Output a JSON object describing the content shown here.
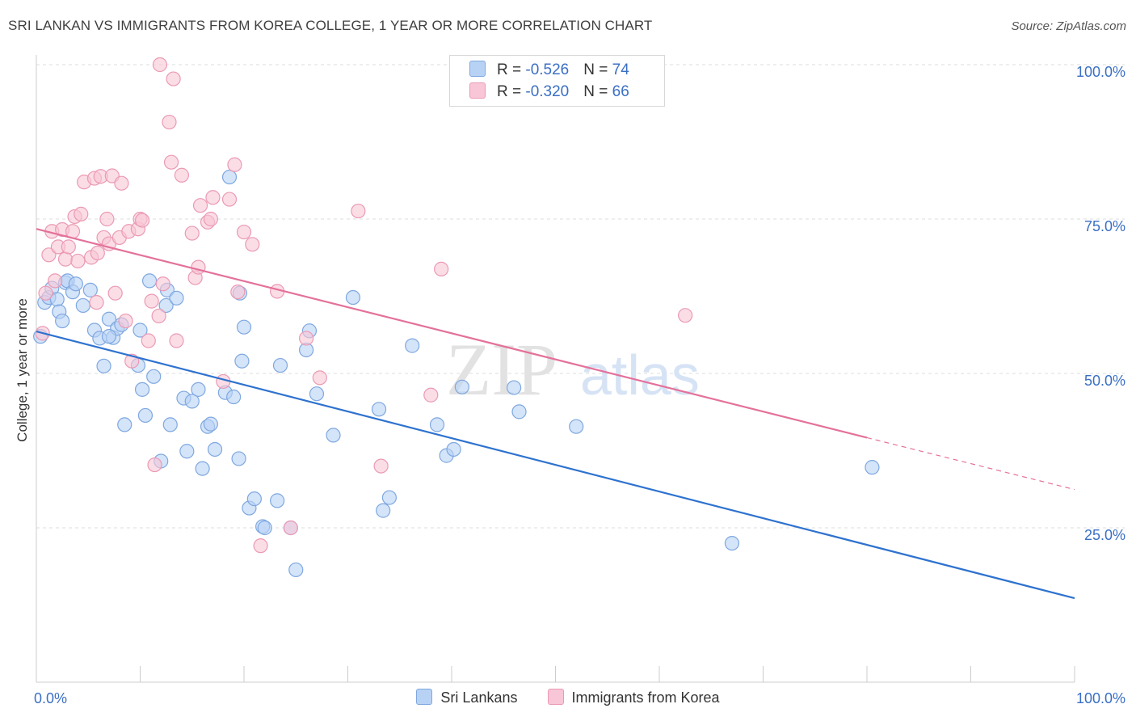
{
  "title": "SRI LANKAN VS IMMIGRANTS FROM KOREA COLLEGE, 1 YEAR OR MORE CORRELATION CHART",
  "source": "Source: ZipAtlas.com",
  "watermark": {
    "part1": "ZIP",
    "part2": "atlas"
  },
  "colors": {
    "blue_fill": "#b8d2f5",
    "blue_stroke": "#7fa8e0",
    "blue_line": "#2e72cf",
    "pink_fill": "#f8c6d6",
    "pink_stroke": "#eb9ab4",
    "pink_line": "#e4719a",
    "axis_text": "#3a6fc4",
    "grid": "#dddddd"
  },
  "legend_top": [
    {
      "r_label": "R = ",
      "r_value": "-0.526",
      "n_label": "N = ",
      "n_value": "74",
      "color": "#b8d2f5"
    },
    {
      "r_label": "R = ",
      "r_value": "-0.320",
      "n_label": "N = ",
      "n_value": "66",
      "color": "#f8c6d6"
    }
  ],
  "legend_bottom": [
    {
      "label": "Sri Lankans",
      "color": "#b8d2f5"
    },
    {
      "label": "Immigrants from Korea",
      "color": "#f8c6d6"
    }
  ],
  "chart_data": {
    "type": "scatter",
    "title": "SRI LANKAN VS IMMIGRANTS FROM KOREA COLLEGE, 1 YEAR OR MORE CORRELATION CHART",
    "xlabel": "",
    "ylabel": "College, 1 year or more",
    "xlim": [
      0,
      100
    ],
    "ylim": [
      0,
      100
    ],
    "x_tick_labels": [
      {
        "value": 0,
        "label": "0.0%"
      },
      {
        "value": 100,
        "label": "100.0%"
      }
    ],
    "y_tick_labels": [
      {
        "value": 25,
        "label": "25.0%"
      },
      {
        "value": 50,
        "label": "50.0%"
      },
      {
        "value": 75,
        "label": "75.0%"
      },
      {
        "value": 100,
        "label": "100.0%"
      }
    ],
    "grid": "horizontal dashed",
    "legend": "top-center",
    "series": [
      {
        "name": "Sri Lankans",
        "r": -0.526,
        "n": 74,
        "trend": {
          "x0": 0,
          "y0": 56.8,
          "x1": 100,
          "y1": 13.6
        },
        "points": [
          [
            0.8,
            61.5
          ],
          [
            1.2,
            62.3
          ],
          [
            1.5,
            63.8
          ],
          [
            2.0,
            62.0
          ],
          [
            2.2,
            60.0
          ],
          [
            2.5,
            58.5
          ],
          [
            2.8,
            64.7
          ],
          [
            3.0,
            65.0
          ],
          [
            3.5,
            63.2
          ],
          [
            4.5,
            61.0
          ],
          [
            5.2,
            63.5
          ],
          [
            5.6,
            57.0
          ],
          [
            6.1,
            55.7
          ],
          [
            6.5,
            51.2
          ],
          [
            7.0,
            58.8
          ],
          [
            7.4,
            55.8
          ],
          [
            7.8,
            57.3
          ],
          [
            8.2,
            57.9
          ],
          [
            8.5,
            41.7
          ],
          [
            9.8,
            51.3
          ],
          [
            10.0,
            57.0
          ],
          [
            10.2,
            47.4
          ],
          [
            10.5,
            43.2
          ],
          [
            10.9,
            65.0
          ],
          [
            11.3,
            49.5
          ],
          [
            12.0,
            35.8
          ],
          [
            12.5,
            61.0
          ],
          [
            12.6,
            63.5
          ],
          [
            12.9,
            41.7
          ],
          [
            13.5,
            62.2
          ],
          [
            14.2,
            46.0
          ],
          [
            14.5,
            37.4
          ],
          [
            15.0,
            45.5
          ],
          [
            15.6,
            47.4
          ],
          [
            16.0,
            34.6
          ],
          [
            16.5,
            41.4
          ],
          [
            16.8,
            41.8
          ],
          [
            17.2,
            37.7
          ],
          [
            18.2,
            46.9
          ],
          [
            18.6,
            81.8
          ],
          [
            19.0,
            46.2
          ],
          [
            19.5,
            36.2
          ],
          [
            19.6,
            63.0
          ],
          [
            19.8,
            52.0
          ],
          [
            20.0,
            57.5
          ],
          [
            20.5,
            28.2
          ],
          [
            21.0,
            29.7
          ],
          [
            21.8,
            25.2
          ],
          [
            22.0,
            25.0
          ],
          [
            23.2,
            29.4
          ],
          [
            23.5,
            51.3
          ],
          [
            24.5,
            25.0
          ],
          [
            25.0,
            18.2
          ],
          [
            26.0,
            53.8
          ],
          [
            26.3,
            56.9
          ],
          [
            27.0,
            46.7
          ],
          [
            28.6,
            40.0
          ],
          [
            30.5,
            62.3
          ],
          [
            33.0,
            44.2
          ],
          [
            33.4,
            27.8
          ],
          [
            34.0,
            29.9
          ],
          [
            36.2,
            54.5
          ],
          [
            38.6,
            41.7
          ],
          [
            39.5,
            36.7
          ],
          [
            40.2,
            37.7
          ],
          [
            41.0,
            47.8
          ],
          [
            46.0,
            47.7
          ],
          [
            46.5,
            43.8
          ],
          [
            52.0,
            41.4
          ],
          [
            67.0,
            22.5
          ],
          [
            80.5,
            34.8
          ],
          [
            0.4,
            56.0
          ],
          [
            7.0,
            56.0
          ],
          [
            3.8,
            64.5
          ]
        ]
      },
      {
        "name": "Immigrants from Korea",
        "r": -0.32,
        "n": 66,
        "trend": {
          "x0": 0,
          "y0": 73.4,
          "x1": 80,
          "y1": 39.6,
          "dash_to_x": 100,
          "dash_to_y": 31.2
        },
        "points": [
          [
            0.6,
            56.5
          ],
          [
            0.9,
            63.0
          ],
          [
            1.2,
            69.2
          ],
          [
            1.5,
            73.0
          ],
          [
            1.8,
            65.0
          ],
          [
            2.1,
            70.5
          ],
          [
            2.5,
            73.3
          ],
          [
            2.8,
            68.5
          ],
          [
            3.1,
            70.5
          ],
          [
            3.5,
            73.0
          ],
          [
            3.7,
            75.4
          ],
          [
            4.0,
            68.2
          ],
          [
            4.3,
            75.8
          ],
          [
            4.6,
            81.0
          ],
          [
            5.3,
            68.8
          ],
          [
            5.6,
            81.6
          ],
          [
            5.9,
            69.5
          ],
          [
            6.2,
            81.9
          ],
          [
            6.5,
            72.0
          ],
          [
            6.8,
            75.0
          ],
          [
            7.0,
            71.0
          ],
          [
            7.3,
            82.0
          ],
          [
            7.6,
            63.0
          ],
          [
            8.0,
            72.0
          ],
          [
            8.2,
            80.8
          ],
          [
            8.6,
            58.5
          ],
          [
            8.9,
            73.0
          ],
          [
            9.2,
            52.0
          ],
          [
            9.8,
            73.4
          ],
          [
            10.0,
            75.0
          ],
          [
            10.2,
            74.8
          ],
          [
            10.8,
            55.3
          ],
          [
            11.1,
            61.7
          ],
          [
            11.4,
            35.2
          ],
          [
            11.8,
            59.3
          ],
          [
            11.9,
            100.0
          ],
          [
            12.2,
            64.5
          ],
          [
            12.8,
            90.7
          ],
          [
            13.0,
            84.2
          ],
          [
            13.2,
            97.7
          ],
          [
            13.5,
            55.3
          ],
          [
            14.0,
            82.1
          ],
          [
            15.0,
            72.7
          ],
          [
            15.3,
            65.5
          ],
          [
            15.6,
            67.2
          ],
          [
            15.8,
            77.2
          ],
          [
            16.5,
            74.5
          ],
          [
            16.8,
            75.0
          ],
          [
            17.0,
            78.5
          ],
          [
            18.0,
            48.7
          ],
          [
            18.6,
            78.2
          ],
          [
            19.1,
            83.8
          ],
          [
            19.4,
            63.2
          ],
          [
            20.0,
            72.9
          ],
          [
            20.8,
            70.9
          ],
          [
            21.6,
            22.1
          ],
          [
            23.2,
            63.3
          ],
          [
            24.5,
            25.0
          ],
          [
            26.0,
            55.7
          ],
          [
            27.3,
            49.3
          ],
          [
            31.0,
            76.3
          ],
          [
            33.2,
            35.0
          ],
          [
            38.0,
            46.5
          ],
          [
            39.0,
            66.9
          ],
          [
            62.5,
            59.4
          ],
          [
            5.8,
            61.5
          ]
        ]
      }
    ]
  }
}
